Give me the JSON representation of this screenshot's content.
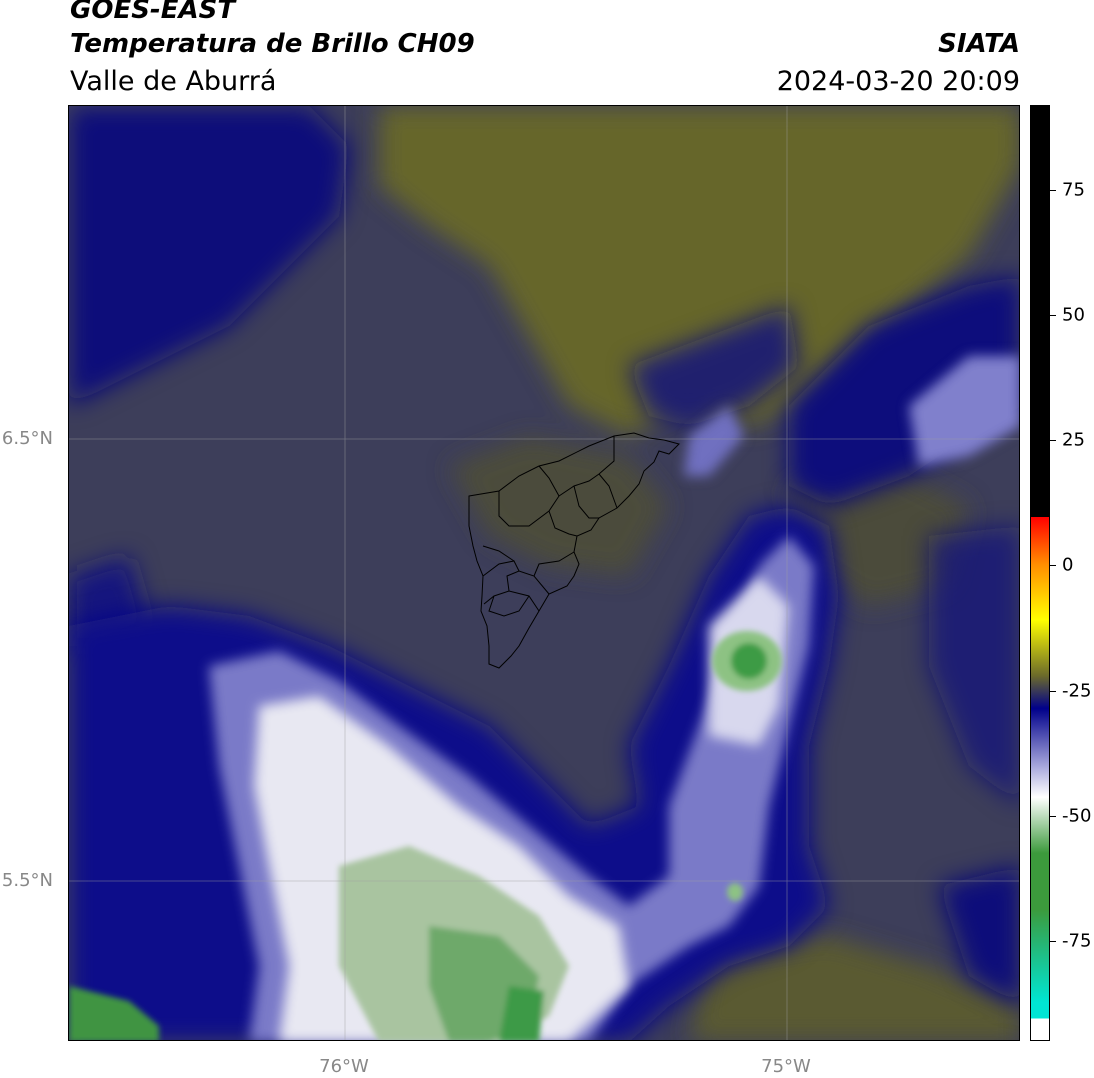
{
  "header": {
    "satellite": "GOES-EAST",
    "product": "Temperatura de Brillo CH09",
    "region": "Valle de Aburrá",
    "organization": "SIATA",
    "datetime": "2024-03-20 20:09"
  },
  "axes": {
    "lat_labels": [
      {
        "text": "6.5°N",
        "value": 6.5
      },
      {
        "text": "5.5°N",
        "value": 5.5
      }
    ],
    "lon_labels": [
      {
        "text": "76°W",
        "value": -76.0
      },
      {
        "text": "75°W",
        "value": -75.0
      }
    ],
    "lon_range": [
      -76.625,
      -74.47
    ],
    "lat_range": [
      5.135,
      7.25
    ],
    "grid": true
  },
  "colorbar": {
    "ticks": [
      75,
      50,
      25,
      0,
      -25,
      -50,
      -75
    ],
    "range": [
      -95,
      92
    ],
    "colors": {
      "black": "#000000",
      "red": "#ff0000",
      "orange": "#ff8c00",
      "yellow": "#ffff00",
      "olive": "#6b6a2a",
      "navy": "#00008b",
      "lavender": "#b0b0e0",
      "white": "#ffffff",
      "green": "#3c9a3c",
      "cyan": "#00e5d4"
    }
  }
}
